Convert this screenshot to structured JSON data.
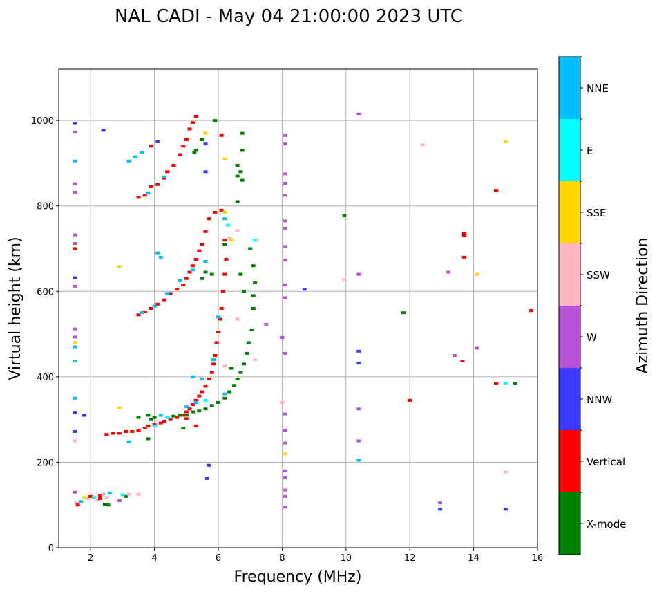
{
  "chart_data": {
    "type": "scatter",
    "title": "NAL CADI - May 04 21:00:00 2023 UTC",
    "xlabel": "Frequency (MHz)",
    "ylabel": "Virtual height (km)",
    "xlim": [
      1,
      16
    ],
    "ylim": [
      0,
      1120
    ],
    "xticks": [
      2,
      4,
      6,
      8,
      10,
      12,
      14,
      16
    ],
    "yticks": [
      0,
      200,
      400,
      600,
      800,
      1000
    ],
    "grid": true,
    "colorbar": {
      "label": "Azimuth Direction",
      "categories": [
        "X-mode",
        "Vertical",
        "NNW",
        "W",
        "SSW",
        "SSE",
        "E",
        "NNE"
      ],
      "colors": [
        "#008000",
        "#ff0000",
        "#3a3aff",
        "#b552d6",
        "#ffb6c1",
        "#ffd700",
        "#00ffff",
        "#00bfff"
      ]
    },
    "points_format": [
      "frequency_mhz",
      "height_km",
      "category_index"
    ],
    "points": [
      [
        1.55,
        105,
        4
      ],
      [
        1.6,
        100,
        1
      ],
      [
        1.7,
        108,
        7
      ],
      [
        1.8,
        118,
        5
      ],
      [
        1.9,
        115,
        4
      ],
      [
        2.0,
        120,
        1
      ],
      [
        2.1,
        118,
        6
      ],
      [
        2.2,
        112,
        4
      ],
      [
        2.3,
        122,
        1
      ],
      [
        2.4,
        125,
        4
      ],
      [
        2.5,
        118,
        4
      ],
      [
        2.6,
        128,
        7
      ],
      [
        2.45,
        102,
        0
      ],
      [
        2.55,
        100,
        0
      ],
      [
        2.9,
        110,
        3
      ],
      [
        3.0,
        124,
        6
      ],
      [
        3.1,
        120,
        0
      ],
      [
        3.2,
        125,
        4
      ],
      [
        3.5,
        125,
        4
      ],
      [
        1.5,
        130,
        3
      ],
      [
        2.3,
        115,
        1
      ],
      [
        2.5,
        265,
        1
      ],
      [
        2.7,
        268,
        1
      ],
      [
        2.9,
        268,
        1
      ],
      [
        3.1,
        272,
        1
      ],
      [
        3.3,
        272,
        1
      ],
      [
        3.5,
        275,
        1
      ],
      [
        3.7,
        280,
        1
      ],
      [
        3.8,
        285,
        1
      ],
      [
        4.0,
        288,
        1
      ],
      [
        4.2,
        292,
        1
      ],
      [
        4.3,
        295,
        1
      ],
      [
        4.5,
        300,
        1
      ],
      [
        4.7,
        305,
        1
      ],
      [
        4.9,
        310,
        1
      ],
      [
        5.0,
        318,
        1
      ],
      [
        5.1,
        325,
        1
      ],
      [
        5.2,
        335,
        1
      ],
      [
        5.3,
        345,
        1
      ],
      [
        5.4,
        355,
        1
      ],
      [
        5.5,
        365,
        1
      ],
      [
        5.6,
        378,
        1
      ],
      [
        5.7,
        395,
        1
      ],
      [
        5.8,
        410,
        1
      ],
      [
        5.85,
        430,
        1
      ],
      [
        5.9,
        450,
        1
      ],
      [
        5.95,
        480,
        1
      ],
      [
        6.0,
        505,
        1
      ],
      [
        6.05,
        535,
        1
      ],
      [
        6.1,
        560,
        1
      ],
      [
        6.15,
        600,
        1
      ],
      [
        6.2,
        640,
        1
      ],
      [
        6.25,
        675,
        1
      ],
      [
        6.2,
        720,
        1
      ],
      [
        6.1,
        790,
        1
      ],
      [
        5.3,
        285,
        1
      ],
      [
        5.0,
        302,
        1
      ],
      [
        3.5,
        305,
        0
      ],
      [
        3.8,
        310,
        0
      ],
      [
        3.9,
        300,
        0
      ],
      [
        4.0,
        305,
        0
      ],
      [
        4.6,
        308,
        0
      ],
      [
        4.8,
        310,
        0
      ],
      [
        5.0,
        310,
        0
      ],
      [
        5.2,
        318,
        0
      ],
      [
        5.4,
        320,
        0
      ],
      [
        5.6,
        325,
        0
      ],
      [
        5.8,
        333,
        0
      ],
      [
        6.0,
        340,
        0
      ],
      [
        6.2,
        350,
        0
      ],
      [
        6.35,
        365,
        0
      ],
      [
        6.5,
        380,
        0
      ],
      [
        6.6,
        395,
        0
      ],
      [
        6.7,
        410,
        0
      ],
      [
        6.8,
        430,
        0
      ],
      [
        6.9,
        455,
        0
      ],
      [
        6.95,
        480,
        0
      ],
      [
        7.05,
        510,
        0
      ],
      [
        7.1,
        560,
        0
      ],
      [
        7.1,
        590,
        0
      ],
      [
        7.15,
        620,
        0
      ],
      [
        7.1,
        660,
        0
      ],
      [
        6.8,
        600,
        0
      ],
      [
        6.4,
        420,
        0
      ],
      [
        3.8,
        255,
        0
      ],
      [
        4.9,
        280,
        0
      ],
      [
        3.2,
        248,
        7
      ],
      [
        4.0,
        285,
        6
      ],
      [
        4.2,
        310,
        7
      ],
      [
        4.4,
        305,
        6
      ],
      [
        5.3,
        340,
        7
      ],
      [
        5.0,
        330,
        7
      ],
      [
        5.6,
        345,
        6
      ],
      [
        6.2,
        360,
        7
      ],
      [
        5.2,
        400,
        7
      ],
      [
        5.5,
        395,
        7
      ],
      [
        5.85,
        440,
        7
      ],
      [
        6.0,
        540,
        7
      ],
      [
        6.2,
        425,
        4
      ],
      [
        7.15,
        440,
        4
      ],
      [
        6.6,
        535,
        4
      ],
      [
        3.5,
        545,
        1
      ],
      [
        3.7,
        552,
        1
      ],
      [
        3.9,
        560,
        1
      ],
      [
        4.1,
        570,
        1
      ],
      [
        4.3,
        580,
        1
      ],
      [
        4.5,
        595,
        1
      ],
      [
        4.7,
        605,
        1
      ],
      [
        4.9,
        615,
        1
      ],
      [
        5.0,
        630,
        1
      ],
      [
        5.1,
        645,
        1
      ],
      [
        5.2,
        660,
        1
      ],
      [
        5.3,
        675,
        1
      ],
      [
        5.4,
        695,
        1
      ],
      [
        5.5,
        710,
        1
      ],
      [
        5.6,
        740,
        1
      ],
      [
        5.7,
        770,
        1
      ],
      [
        5.9,
        785,
        1
      ],
      [
        3.6,
        550,
        7
      ],
      [
        4.0,
        565,
        7
      ],
      [
        4.4,
        595,
        7
      ],
      [
        4.8,
        625,
        7
      ],
      [
        5.2,
        650,
        7
      ],
      [
        5.6,
        670,
        7
      ],
      [
        4.1,
        690,
        7
      ],
      [
        4.2,
        680,
        7
      ],
      [
        6.2,
        770,
        7
      ],
      [
        6.3,
        755,
        6
      ],
      [
        7.15,
        720,
        6
      ],
      [
        5.5,
        630,
        0
      ],
      [
        5.6,
        645,
        0
      ],
      [
        5.8,
        640,
        0
      ],
      [
        6.2,
        710,
        0
      ],
      [
        6.7,
        640,
        0
      ],
      [
        7.0,
        700,
        0
      ],
      [
        6.6,
        742,
        4
      ],
      [
        6.35,
        725,
        4
      ],
      [
        3.5,
        820,
        1
      ],
      [
        3.7,
        825,
        1
      ],
      [
        3.9,
        845,
        1
      ],
      [
        4.1,
        850,
        1
      ],
      [
        4.3,
        865,
        1
      ],
      [
        4.4,
        880,
        1
      ],
      [
        4.6,
        895,
        1
      ],
      [
        4.8,
        920,
        1
      ],
      [
        4.9,
        940,
        1
      ],
      [
        5.0,
        955,
        1
      ],
      [
        5.1,
        980,
        1
      ],
      [
        5.2,
        995,
        1
      ],
      [
        5.3,
        1010,
        1
      ],
      [
        3.9,
        940,
        1
      ],
      [
        6.1,
        965,
        1
      ],
      [
        3.4,
        915,
        7
      ],
      [
        3.6,
        925,
        7
      ],
      [
        3.8,
        830,
        7
      ],
      [
        4.3,
        868,
        7
      ],
      [
        3.2,
        905,
        7
      ],
      [
        5.3,
        930,
        0
      ],
      [
        5.5,
        955,
        0
      ],
      [
        5.25,
        925,
        0
      ],
      [
        6.6,
        895,
        0
      ],
      [
        6.7,
        880,
        0
      ],
      [
        6.75,
        860,
        0
      ],
      [
        6.6,
        870,
        0
      ],
      [
        6.6,
        810,
        0
      ],
      [
        6.75,
        970,
        0
      ],
      [
        6.75,
        930,
        0
      ],
      [
        5.9,
        1000,
        0
      ],
      [
        4.1,
        950,
        2
      ],
      [
        5.6,
        945,
        2
      ],
      [
        5.6,
        880,
        2
      ],
      [
        2.4,
        977,
        2
      ],
      [
        1.5,
        993,
        2
      ],
      [
        5.7,
        193,
        2
      ],
      [
        5.65,
        162,
        2
      ],
      [
        5.6,
        970,
        5
      ],
      [
        6.2,
        910,
        5
      ],
      [
        6.2,
        785,
        5
      ],
      [
        2.9,
        658,
        5
      ],
      [
        2.9,
        327,
        5
      ],
      [
        6.4,
        720,
        5
      ],
      [
        1.5,
        973,
        3
      ],
      [
        1.5,
        905,
        7
      ],
      [
        1.5,
        852,
        3
      ],
      [
        1.5,
        832,
        3
      ],
      [
        1.5,
        732,
        3
      ],
      [
        1.5,
        712,
        3
      ],
      [
        1.5,
        700,
        1
      ],
      [
        1.5,
        632,
        2
      ],
      [
        1.5,
        612,
        3
      ],
      [
        1.5,
        512,
        3
      ],
      [
        1.5,
        493,
        3
      ],
      [
        1.5,
        480,
        5
      ],
      [
        1.5,
        470,
        7
      ],
      [
        1.5,
        437,
        7
      ],
      [
        1.5,
        350,
        7
      ],
      [
        1.5,
        316,
        2
      ],
      [
        1.5,
        272,
        2
      ],
      [
        1.5,
        250,
        4
      ],
      [
        1.8,
        310,
        2
      ],
      [
        8.1,
        965,
        3
      ],
      [
        8.1,
        945,
        3
      ],
      [
        8.1,
        875,
        3
      ],
      [
        8.1,
        853,
        3
      ],
      [
        8.1,
        825,
        3
      ],
      [
        8.1,
        765,
        3
      ],
      [
        8.1,
        748,
        3
      ],
      [
        8.1,
        705,
        3
      ],
      [
        8.1,
        673,
        3
      ],
      [
        8.1,
        615,
        3
      ],
      [
        8.1,
        585,
        3
      ],
      [
        8.1,
        455,
        3
      ],
      [
        8.1,
        313,
        3
      ],
      [
        8.1,
        275,
        3
      ],
      [
        8.1,
        245,
        3
      ],
      [
        8.1,
        220,
        5
      ],
      [
        8.1,
        180,
        3
      ],
      [
        8.1,
        165,
        3
      ],
      [
        8.1,
        135,
        3
      ],
      [
        8.1,
        120,
        3
      ],
      [
        8.1,
        95,
        3
      ],
      [
        7.5,
        523,
        3
      ],
      [
        8.0,
        492,
        3
      ],
      [
        8.0,
        340,
        4
      ],
      [
        10.4,
        205,
        7
      ],
      [
        10.4,
        250,
        3
      ],
      [
        10.4,
        325,
        3
      ],
      [
        10.4,
        432,
        2
      ],
      [
        10.4,
        460,
        2
      ],
      [
        10.4,
        1015,
        3
      ],
      [
        10.4,
        640,
        3
      ],
      [
        12.0,
        345,
        1
      ],
      [
        11.8,
        550,
        0
      ],
      [
        12.95,
        105,
        3
      ],
      [
        12.95,
        90,
        2
      ],
      [
        13.2,
        645,
        3
      ],
      [
        13.4,
        450,
        3
      ],
      [
        13.65,
        437,
        1
      ],
      [
        13.7,
        680,
        1
      ],
      [
        13.7,
        730,
        1
      ],
      [
        13.7,
        735,
        1
      ],
      [
        14.1,
        640,
        5
      ],
      [
        14.1,
        467,
        3
      ],
      [
        14.7,
        385,
        1
      ],
      [
        14.7,
        835,
        1
      ],
      [
        15.0,
        385,
        6
      ],
      [
        15.3,
        385,
        0
      ],
      [
        15.0,
        950,
        5
      ],
      [
        15.0,
        90,
        2
      ],
      [
        15.0,
        177,
        4
      ],
      [
        15.8,
        555,
        1
      ],
      [
        12.4,
        943,
        4
      ],
      [
        9.95,
        777,
        0
      ],
      [
        9.95,
        627,
        4
      ],
      [
        8.7,
        605,
        2
      ]
    ]
  }
}
